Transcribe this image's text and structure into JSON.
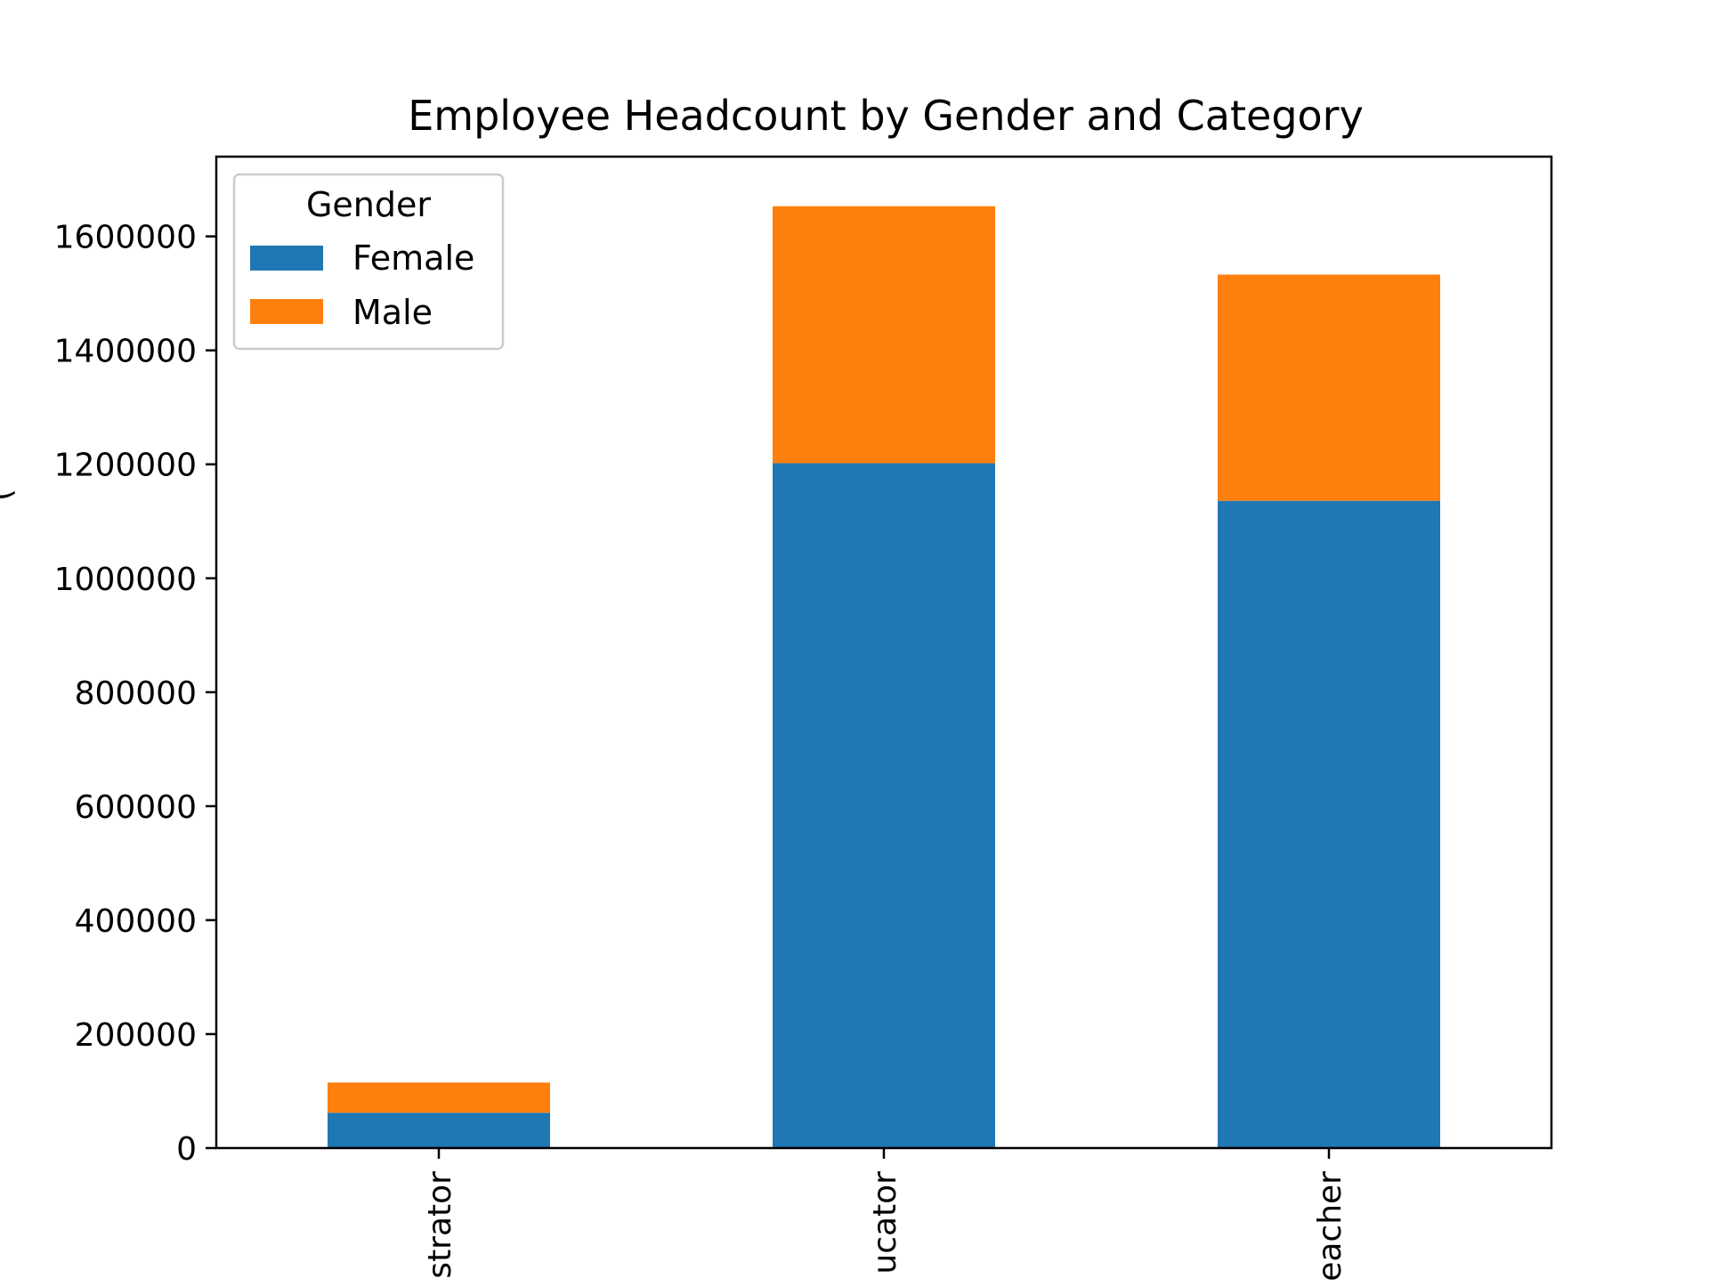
{
  "chart_data": {
    "type": "bar",
    "stacked": true,
    "title": "Employee Headcount by Gender and Category",
    "xlabel": "",
    "ylabel": "(",
    "categories": [
      "strator",
      "ucator",
      "eacher"
    ],
    "series": [
      {
        "name": "Female",
        "values": [
          62000,
          1202000,
          1136000
        ],
        "color": "#1f77b4"
      },
      {
        "name": "Male",
        "values": [
          53000,
          451000,
          397000
        ],
        "color": "#ff7f0e"
      }
    ],
    "ylim": [
      0,
      1740000
    ],
    "yticks": [
      0,
      200000,
      400000,
      600000,
      800000,
      1000000,
      1200000,
      1400000,
      1600000
    ],
    "ytick_labels": [
      "0",
      "200000",
      "400000",
      "600000",
      "800000",
      "1000000",
      "1200000",
      "1400000",
      "1600000"
    ],
    "legend": {
      "title": "Gender",
      "entries": [
        "Female",
        "Male"
      ],
      "position": "top-left"
    },
    "grid": false
  }
}
